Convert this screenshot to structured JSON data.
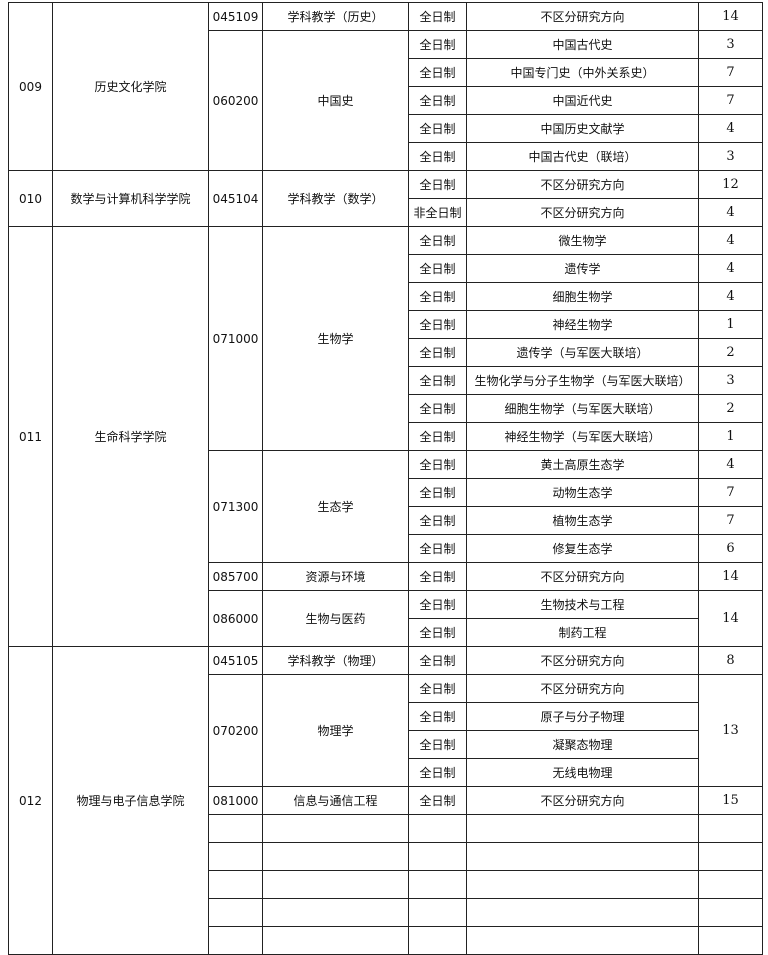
{
  "colleges": [
    {
      "code": "009",
      "name": "历史文化学院",
      "majors": [
        {
          "code": "045109",
          "name": "学科教学（历史）",
          "directions": [
            {
              "mode": "全日制",
              "name": "不区分研究方向",
              "count": "14"
            }
          ]
        },
        {
          "code": "060200",
          "name": "中国史",
          "directions": [
            {
              "mode": "全日制",
              "name": "中国古代史",
              "count": "3"
            },
            {
              "mode": "全日制",
              "name": "中国专门史（中外关系史）",
              "count": "7"
            },
            {
              "mode": "全日制",
              "name": "中国近代史",
              "count": "7"
            },
            {
              "mode": "全日制",
              "name": "中国历史文献学",
              "count": "4"
            },
            {
              "mode": "全日制",
              "name": "中国古代史（联培）",
              "count": "3"
            }
          ]
        }
      ]
    },
    {
      "code": "010",
      "name": "数学与计算机科学学院",
      "majors": [
        {
          "code": "045104",
          "name": "学科教学（数学）",
          "directions": [
            {
              "mode": "全日制",
              "name": "不区分研究方向",
              "count": "12"
            },
            {
              "mode": "非全日制",
              "name": "不区分研究方向",
              "count": "4"
            }
          ]
        }
      ]
    },
    {
      "code": "011",
      "name": "生命科学学院",
      "majors": [
        {
          "code": "071000",
          "name": "生物学",
          "directions": [
            {
              "mode": "全日制",
              "name": "微生物学",
              "count": "4"
            },
            {
              "mode": "全日制",
              "name": "遗传学",
              "count": "4"
            },
            {
              "mode": "全日制",
              "name": "细胞生物学",
              "count": "4"
            },
            {
              "mode": "全日制",
              "name": "神经生物学",
              "count": "1"
            },
            {
              "mode": "全日制",
              "name": "遗传学（与军医大联培）",
              "count": "2"
            },
            {
              "mode": "全日制",
              "name": "生物化学与分子生物学（与军医大联培）",
              "count": "3"
            },
            {
              "mode": "全日制",
              "name": "细胞生物学（与军医大联培）",
              "count": "2"
            },
            {
              "mode": "全日制",
              "name": "神经生物学（与军医大联培）",
              "count": "1"
            }
          ]
        },
        {
          "code": "071300",
          "name": "生态学",
          "directions": [
            {
              "mode": "全日制",
              "name": "黄土高原生态学",
              "count": "4"
            },
            {
              "mode": "全日制",
              "name": "动物生态学",
              "count": "7"
            },
            {
              "mode": "全日制",
              "name": "植物生态学",
              "count": "7"
            },
            {
              "mode": "全日制",
              "name": "修复生态学",
              "count": "6"
            }
          ]
        },
        {
          "code": "085700",
          "name": "资源与环境",
          "directions": [
            {
              "mode": "全日制",
              "name": "不区分研究方向",
              "count": "14"
            }
          ]
        },
        {
          "code": "086000",
          "name": "生物与医药",
          "merged_count": "14",
          "directions": [
            {
              "mode": "全日制",
              "name": "生物技术与工程"
            },
            {
              "mode": "全日制",
              "name": "制药工程"
            }
          ]
        }
      ]
    },
    {
      "code": "012",
      "name": "物理与电子信息学院",
      "majors": [
        {
          "code": "045105",
          "name": "学科教学（物理）",
          "directions": [
            {
              "mode": "全日制",
              "name": "不区分研究方向",
              "count": "8"
            }
          ]
        },
        {
          "code": "070200",
          "name": "物理学",
          "merged_count": "13",
          "directions": [
            {
              "mode": "全日制",
              "name": "不区分研究方向"
            },
            {
              "mode": "全日制",
              "name": "原子与分子物理"
            },
            {
              "mode": "全日制",
              "name": "凝聚态物理"
            },
            {
              "mode": "全日制",
              "name": "无线电物理"
            }
          ]
        },
        {
          "code": "081000",
          "name": "信息与通信工程",
          "directions": [
            {
              "mode": "全日制",
              "name": "不区分研究方向",
              "count": "15"
            }
          ]
        }
      ]
    }
  ]
}
